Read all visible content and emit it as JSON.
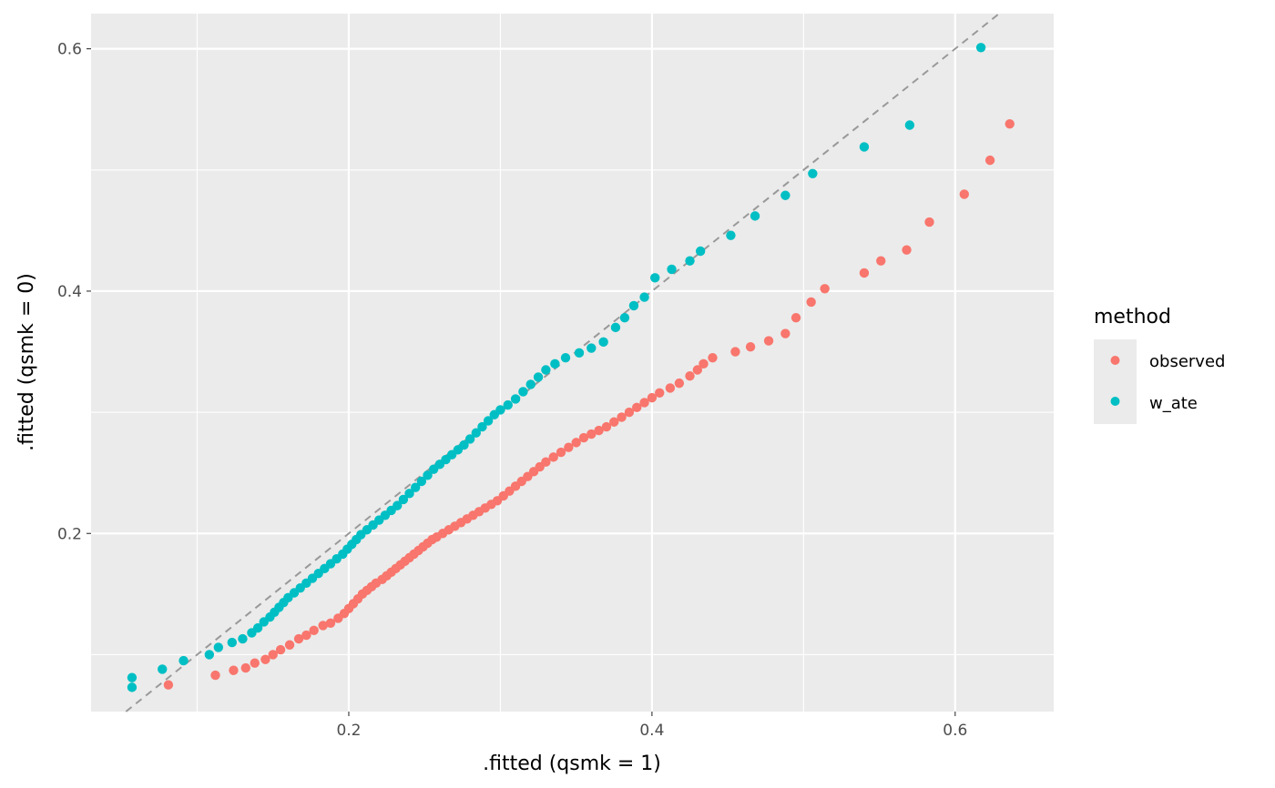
{
  "chart_data": {
    "type": "scatter",
    "xlabel": ".fitted (qsmk = 1)",
    "ylabel": ".fitted (qsmk = 0)",
    "xlim": [
      0.03,
      0.665
    ],
    "ylim": [
      0.053,
      0.629
    ],
    "x_major_ticks": [
      0.2,
      0.4,
      0.6
    ],
    "x_tick_labels": [
      "0.2",
      "0.4",
      "0.6"
    ],
    "x_minor_ticks": [
      0.1,
      0.3,
      0.5
    ],
    "y_major_ticks": [
      0.2,
      0.4,
      0.6
    ],
    "y_tick_labels": [
      "0.2",
      "0.4",
      "0.6"
    ],
    "y_minor_ticks": [
      0.1,
      0.3,
      0.5
    ],
    "grid": true,
    "reference_line": {
      "type": "identity",
      "slope": 1,
      "intercept": 0,
      "color": "#999999",
      "dash": true
    },
    "legend": {
      "title": "method",
      "position": "right"
    },
    "panel_background": "#EBEBEB",
    "series": [
      {
        "name": "observed",
        "color": "#F8766D",
        "points": [
          [
            0.081,
            0.075
          ],
          [
            0.112,
            0.083
          ],
          [
            0.124,
            0.087
          ],
          [
            0.132,
            0.089
          ],
          [
            0.138,
            0.093
          ],
          [
            0.145,
            0.096
          ],
          [
            0.15,
            0.1
          ],
          [
            0.155,
            0.104
          ],
          [
            0.161,
            0.108
          ],
          [
            0.167,
            0.113
          ],
          [
            0.172,
            0.116
          ],
          [
            0.177,
            0.12
          ],
          [
            0.183,
            0.124
          ],
          [
            0.188,
            0.126
          ],
          [
            0.193,
            0.13
          ],
          [
            0.197,
            0.134
          ],
          [
            0.2,
            0.138
          ],
          [
            0.203,
            0.142
          ],
          [
            0.206,
            0.146
          ],
          [
            0.209,
            0.15
          ],
          [
            0.212,
            0.153
          ],
          [
            0.215,
            0.156
          ],
          [
            0.218,
            0.159
          ],
          [
            0.222,
            0.162
          ],
          [
            0.225,
            0.165
          ],
          [
            0.228,
            0.168
          ],
          [
            0.231,
            0.171
          ],
          [
            0.234,
            0.174
          ],
          [
            0.237,
            0.177
          ],
          [
            0.24,
            0.18
          ],
          [
            0.243,
            0.183
          ],
          [
            0.246,
            0.186
          ],
          [
            0.249,
            0.189
          ],
          [
            0.252,
            0.192
          ],
          [
            0.255,
            0.195
          ],
          [
            0.258,
            0.197
          ],
          [
            0.262,
            0.2
          ],
          [
            0.266,
            0.203
          ],
          [
            0.27,
            0.206
          ],
          [
            0.274,
            0.209
          ],
          [
            0.278,
            0.212
          ],
          [
            0.282,
            0.215
          ],
          [
            0.286,
            0.218
          ],
          [
            0.29,
            0.221
          ],
          [
            0.294,
            0.224
          ],
          [
            0.298,
            0.227
          ],
          [
            0.302,
            0.231
          ],
          [
            0.306,
            0.235
          ],
          [
            0.31,
            0.239
          ],
          [
            0.314,
            0.243
          ],
          [
            0.318,
            0.247
          ],
          [
            0.322,
            0.251
          ],
          [
            0.326,
            0.255
          ],
          [
            0.33,
            0.259
          ],
          [
            0.335,
            0.263
          ],
          [
            0.34,
            0.267
          ],
          [
            0.345,
            0.271
          ],
          [
            0.35,
            0.275
          ],
          [
            0.355,
            0.279
          ],
          [
            0.36,
            0.282
          ],
          [
            0.365,
            0.285
          ],
          [
            0.37,
            0.288
          ],
          [
            0.375,
            0.292
          ],
          [
            0.38,
            0.296
          ],
          [
            0.385,
            0.3
          ],
          [
            0.39,
            0.304
          ],
          [
            0.395,
            0.308
          ],
          [
            0.4,
            0.312
          ],
          [
            0.405,
            0.316
          ],
          [
            0.412,
            0.32
          ],
          [
            0.418,
            0.324
          ],
          [
            0.425,
            0.33
          ],
          [
            0.43,
            0.335
          ],
          [
            0.434,
            0.34
          ],
          [
            0.44,
            0.345
          ],
          [
            0.455,
            0.35
          ],
          [
            0.465,
            0.354
          ],
          [
            0.477,
            0.359
          ],
          [
            0.488,
            0.365
          ],
          [
            0.495,
            0.378
          ],
          [
            0.505,
            0.391
          ],
          [
            0.514,
            0.402
          ],
          [
            0.54,
            0.415
          ],
          [
            0.551,
            0.425
          ],
          [
            0.568,
            0.434
          ],
          [
            0.583,
            0.457
          ],
          [
            0.606,
            0.48
          ],
          [
            0.623,
            0.508
          ],
          [
            0.636,
            0.538
          ]
        ]
      },
      {
        "name": "w_ate",
        "color": "#00BFC4",
        "points": [
          [
            0.057,
            0.073
          ],
          [
            0.057,
            0.081
          ],
          [
            0.077,
            0.088
          ],
          [
            0.091,
            0.095
          ],
          [
            0.108,
            0.1
          ],
          [
            0.114,
            0.106
          ],
          [
            0.123,
            0.11
          ],
          [
            0.13,
            0.113
          ],
          [
            0.136,
            0.118
          ],
          [
            0.14,
            0.122
          ],
          [
            0.144,
            0.127
          ],
          [
            0.148,
            0.131
          ],
          [
            0.151,
            0.135
          ],
          [
            0.154,
            0.139
          ],
          [
            0.157,
            0.143
          ],
          [
            0.16,
            0.147
          ],
          [
            0.164,
            0.151
          ],
          [
            0.168,
            0.155
          ],
          [
            0.172,
            0.159
          ],
          [
            0.176,
            0.163
          ],
          [
            0.18,
            0.167
          ],
          [
            0.184,
            0.171
          ],
          [
            0.188,
            0.175
          ],
          [
            0.192,
            0.179
          ],
          [
            0.196,
            0.183
          ],
          [
            0.199,
            0.187
          ],
          [
            0.202,
            0.191
          ],
          [
            0.205,
            0.195
          ],
          [
            0.208,
            0.199
          ],
          [
            0.212,
            0.203
          ],
          [
            0.216,
            0.207
          ],
          [
            0.22,
            0.211
          ],
          [
            0.224,
            0.215
          ],
          [
            0.228,
            0.219
          ],
          [
            0.232,
            0.223
          ],
          [
            0.236,
            0.228
          ],
          [
            0.24,
            0.233
          ],
          [
            0.244,
            0.238
          ],
          [
            0.248,
            0.243
          ],
          [
            0.252,
            0.248
          ],
          [
            0.256,
            0.253
          ],
          [
            0.26,
            0.257
          ],
          [
            0.264,
            0.261
          ],
          [
            0.268,
            0.265
          ],
          [
            0.272,
            0.269
          ],
          [
            0.276,
            0.273
          ],
          [
            0.28,
            0.278
          ],
          [
            0.284,
            0.283
          ],
          [
            0.288,
            0.288
          ],
          [
            0.292,
            0.293
          ],
          [
            0.296,
            0.298
          ],
          [
            0.3,
            0.302
          ],
          [
            0.305,
            0.306
          ],
          [
            0.31,
            0.311
          ],
          [
            0.315,
            0.317
          ],
          [
            0.32,
            0.323
          ],
          [
            0.325,
            0.329
          ],
          [
            0.33,
            0.335
          ],
          [
            0.336,
            0.34
          ],
          [
            0.343,
            0.345
          ],
          [
            0.352,
            0.349
          ],
          [
            0.36,
            0.353
          ],
          [
            0.368,
            0.358
          ],
          [
            0.376,
            0.37
          ],
          [
            0.382,
            0.378
          ],
          [
            0.388,
            0.388
          ],
          [
            0.395,
            0.395
          ],
          [
            0.402,
            0.411
          ],
          [
            0.413,
            0.418
          ],
          [
            0.425,
            0.425
          ],
          [
            0.432,
            0.433
          ],
          [
            0.452,
            0.446
          ],
          [
            0.468,
            0.462
          ],
          [
            0.488,
            0.479
          ],
          [
            0.506,
            0.497
          ],
          [
            0.54,
            0.519
          ],
          [
            0.57,
            0.537
          ],
          [
            0.617,
            0.601
          ]
        ]
      }
    ]
  }
}
